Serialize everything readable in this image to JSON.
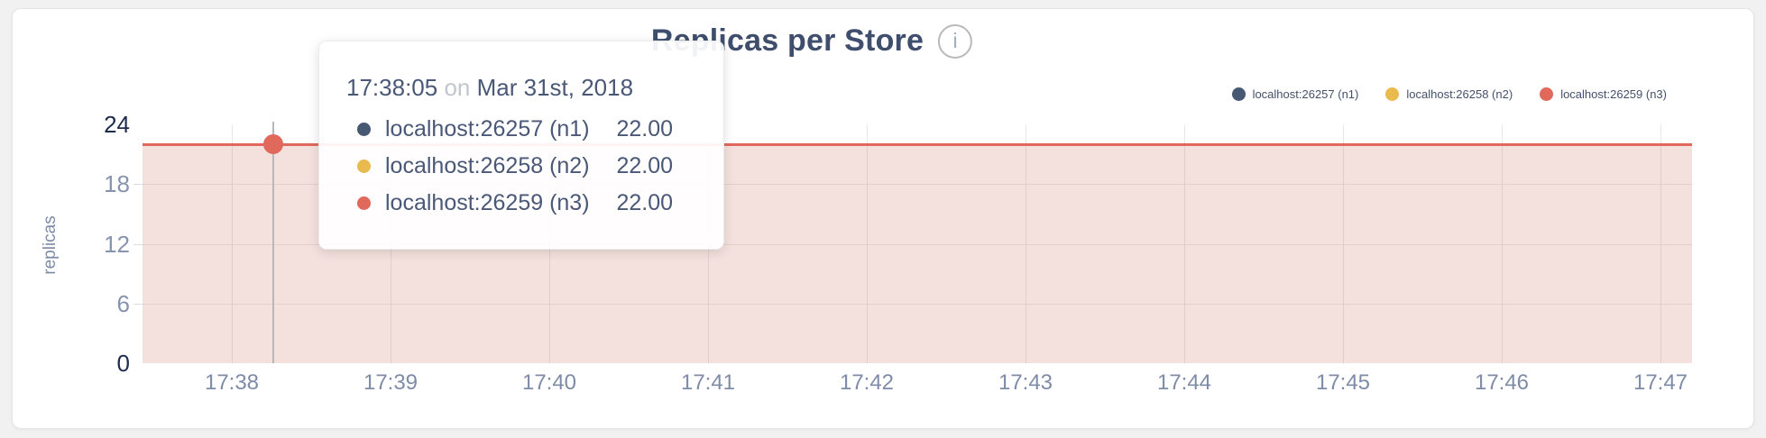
{
  "colors": {
    "accent_red": "#e0695c",
    "accent_yellow": "#e9ba4d",
    "accent_navy": "#475872",
    "page_bg": "#f1f1f2",
    "card_bg": "#ffffff"
  },
  "chart": {
    "title": "Replicas per Store",
    "info_glyph": "i",
    "ylabel": "replicas"
  },
  "chart_data": {
    "type": "line",
    "title": "Replicas per Store",
    "xlabel": "",
    "ylabel": "replicas",
    "ylim": [
      0,
      24
    ],
    "y_ticks": [
      0,
      6,
      12,
      18,
      24
    ],
    "x_ticks": [
      "17:38",
      "17:39",
      "17:40",
      "17:41",
      "17:42",
      "17:43",
      "17:44",
      "17:45",
      "17:46",
      "17:47"
    ],
    "grid": "on",
    "legend_position": "top-right",
    "area_filled": true,
    "series": [
      {
        "name": "localhost:26257 (n1)",
        "color": "#475872",
        "values_constant": 22
      },
      {
        "name": "localhost:26258 (n2)",
        "color": "#e9ba4d",
        "values_constant": 22
      },
      {
        "name": "localhost:26259 (n3)",
        "color": "#e0695c",
        "values_constant": 22
      }
    ],
    "hover_marker": {
      "time": "17:38:05",
      "value": 22
    }
  },
  "tooltip": {
    "time": "17:38:05",
    "conjunction": "on",
    "date": "Mar 31st, 2018",
    "rows": [
      {
        "name": "localhost:26257 (n1)",
        "color": "#475872",
        "value": "22.00"
      },
      {
        "name": "localhost:26258 (n2)",
        "color": "#e9ba4d",
        "value": "22.00"
      },
      {
        "name": "localhost:26259 (n3)",
        "color": "#e0695c",
        "value": "22.00"
      }
    ]
  }
}
